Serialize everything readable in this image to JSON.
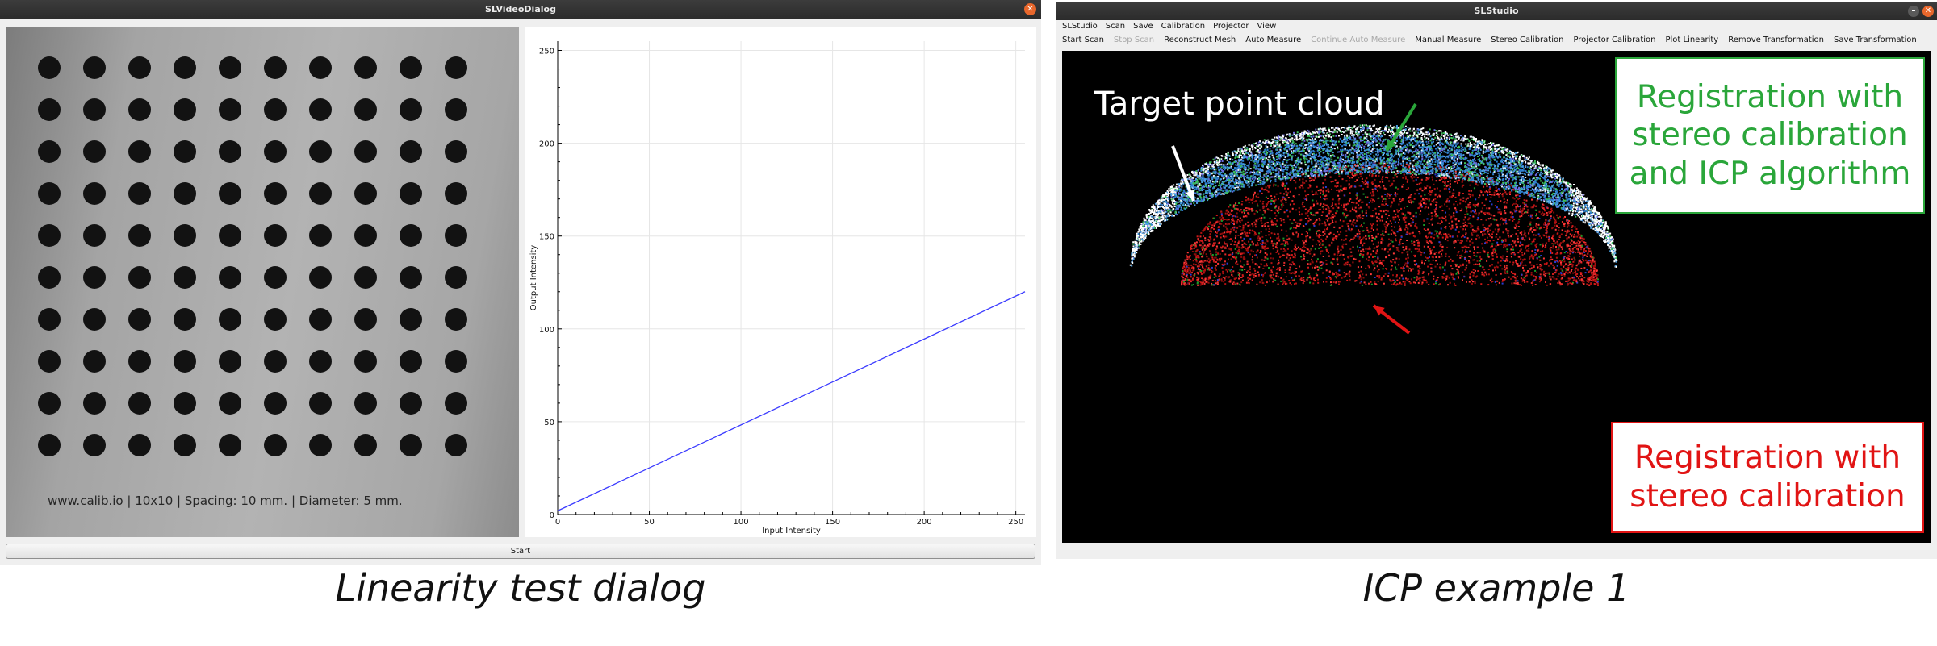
{
  "left_window": {
    "title": "SLVideoDialog",
    "close_icon": "close-icon",
    "camera_view": {
      "dot_rows": 10,
      "dot_cols": 10,
      "caption": "www.calib.io | 10x10 | Spacing: 10 mm. | Diameter: 5 mm."
    },
    "start_button": "Start"
  },
  "plot": {
    "xlabel": "Input Intensity",
    "ylabel": "Output Intensity",
    "series_color": "#3b3bff"
  },
  "chart_data": {
    "type": "line",
    "xlabel": "Input Intensity",
    "ylabel": "Output Intensity",
    "xlim": [
      0,
      255
    ],
    "ylim": [
      0,
      255
    ],
    "x_ticks": [
      0,
      50,
      100,
      150,
      200,
      250
    ],
    "y_ticks": [
      0,
      50,
      100,
      150,
      200,
      250
    ],
    "grid": true,
    "series": [
      {
        "x": [
          0,
          255
        ],
        "y": [
          2,
          120
        ]
      }
    ]
  },
  "right_window": {
    "title": "SLStudio",
    "menu": [
      "SLStudio",
      "Scan",
      "Save",
      "Calibration",
      "Projector",
      "View"
    ],
    "toolbar": [
      {
        "label": "Start Scan",
        "enabled": true
      },
      {
        "label": "Stop Scan",
        "enabled": false
      },
      {
        "label": "Reconstruct Mesh",
        "enabled": true
      },
      {
        "label": "Auto Measure",
        "enabled": true
      },
      {
        "label": "Continue Auto Measure",
        "enabled": false
      },
      {
        "label": "Manual Measure",
        "enabled": true
      },
      {
        "label": "Stereo Calibration",
        "enabled": true
      },
      {
        "label": "Projector Calibration",
        "enabled": true
      },
      {
        "label": "Plot Linearity",
        "enabled": true
      },
      {
        "label": "Remove Transformation",
        "enabled": true
      },
      {
        "label": "Save Transformation",
        "enabled": true
      }
    ],
    "annotations": {
      "target": "Target point cloud",
      "green": "Registration with stereo calibration and ICP algorithm",
      "red": "Registration with stereo calibration"
    },
    "colors": {
      "green": "#2aa63a",
      "red": "#e11414"
    }
  },
  "captions": {
    "left": "Linearity test dialog",
    "right": "ICP example 1"
  }
}
